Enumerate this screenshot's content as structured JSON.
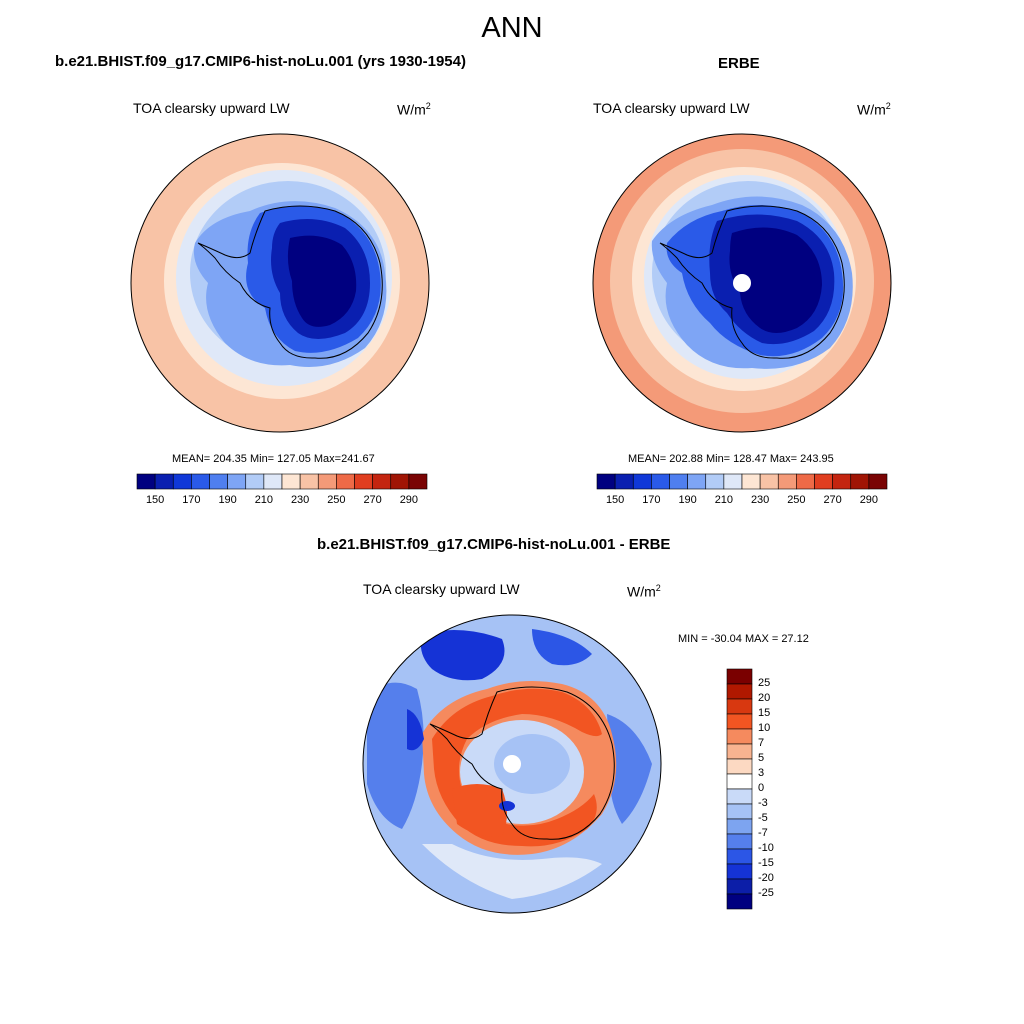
{
  "title": "ANN",
  "panels": [
    {
      "heading": "b.e21.BHIST.f09_g17.CMIP6-hist-noLu.001 (yrs 1930-1954)",
      "field": "TOA clearsky upward LW",
      "units_base": "W/m",
      "units_exp": "2",
      "stats": "MEAN= 204.35  Min= 127.05  Max=241.67"
    },
    {
      "heading": "ERBE",
      "field": "TOA clearsky upward LW",
      "units_base": "W/m",
      "units_exp": "2",
      "stats": "MEAN= 202.88  Min= 128.47  Max= 243.95"
    },
    {
      "heading": "b.e21.BHIST.f09_g17.CMIP6-hist-noLu.001 - ERBE",
      "field": "TOA clearsky upward LW",
      "units_base": "W/m",
      "units_exp": "2",
      "stats": "MIN = -30.04 MAX =  27.12"
    }
  ],
  "colorbar_abs": {
    "colors": [
      "#000080",
      "#0a1fb0",
      "#1038d8",
      "#2a5ae8",
      "#4f7ff0",
      "#7ea5f5",
      "#b2ccf7",
      "#dfe8f8",
      "#fde6d4",
      "#f8c3a6",
      "#f49a78",
      "#ee6a47",
      "#e03e20",
      "#c42510",
      "#a01505",
      "#7a0404"
    ],
    "labels": [
      "150",
      "170",
      "190",
      "210",
      "230",
      "250",
      "270",
      "290"
    ]
  },
  "colorbar_diff": {
    "colors": [
      "#7a0000",
      "#b01800",
      "#d83810",
      "#f25522",
      "#f58a5e",
      "#f8b390",
      "#fcd9c2",
      "#ffffff",
      "#c9daf8",
      "#a6c2f5",
      "#7da4f0",
      "#557fec",
      "#2c56e6",
      "#1533d6",
      "#0c1ea8",
      "#000080"
    ],
    "labels": [
      "25",
      "20",
      "15",
      "10",
      "7",
      "5",
      "3",
      "0",
      "-3",
      "-5",
      "-7",
      "-10",
      "-15",
      "-20",
      "-25"
    ]
  },
  "chart_data": {
    "type": "heatmap",
    "title": "ANN",
    "variable": "TOA clearsky upward LW",
    "units": "W/m2",
    "projection": "south polar stereographic",
    "maps": [
      {
        "name": "b.e21.BHIST.f09_g17.CMIP6-hist-noLu.001 (yrs 1930-1954)",
        "mean": 204.35,
        "min": 127.05,
        "max": 241.67
      },
      {
        "name": "ERBE",
        "mean": 202.88,
        "min": 128.47,
        "max": 243.95
      },
      {
        "name": "b.e21.BHIST.f09_g17.CMIP6-hist-noLu.001 - ERBE",
        "min": -30.04,
        "max": 27.12
      }
    ]
  }
}
